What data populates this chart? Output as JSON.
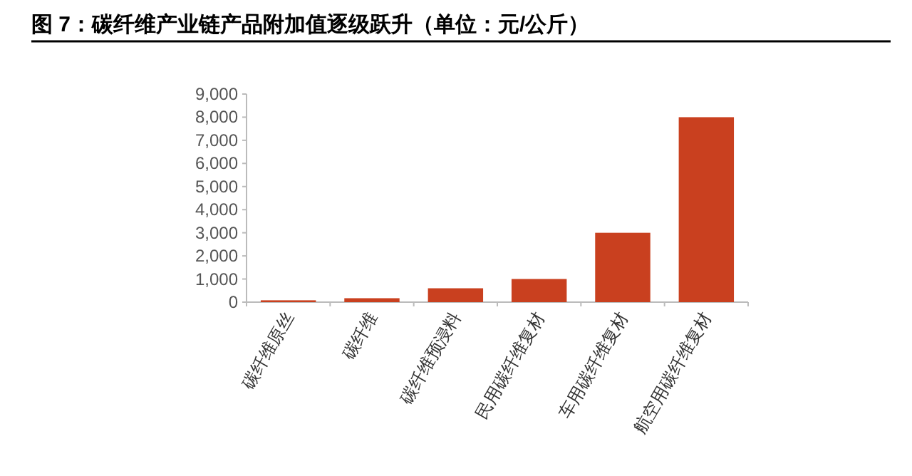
{
  "chart_data": {
    "type": "bar",
    "title": "图 7：碳纤维产业链产品附加值逐级跃升（单位：元/公斤）",
    "categories": [
      "碳纤维原丝",
      "碳纤维",
      "碳纤维预浸料",
      "民用碳纤维复材",
      "车用碳纤维复材",
      "航空用碳纤维复材"
    ],
    "values": [
      80,
      170,
      600,
      1000,
      3000,
      8000
    ],
    "color": "#c9401f",
    "ylim": [
      0,
      9000
    ],
    "yticks": [
      {
        "value": 0,
        "label": "0"
      },
      {
        "value": 1000,
        "label": "1,000"
      },
      {
        "value": 2000,
        "label": "2,000"
      },
      {
        "value": 3000,
        "label": "3,000"
      },
      {
        "value": 4000,
        "label": "4,000"
      },
      {
        "value": 5000,
        "label": "5,000"
      },
      {
        "value": 6000,
        "label": "6,000"
      },
      {
        "value": 7000,
        "label": "7,000"
      },
      {
        "value": 8000,
        "label": "8,000"
      },
      {
        "value": 9000,
        "label": "9,000"
      }
    ],
    "grid": false
  }
}
